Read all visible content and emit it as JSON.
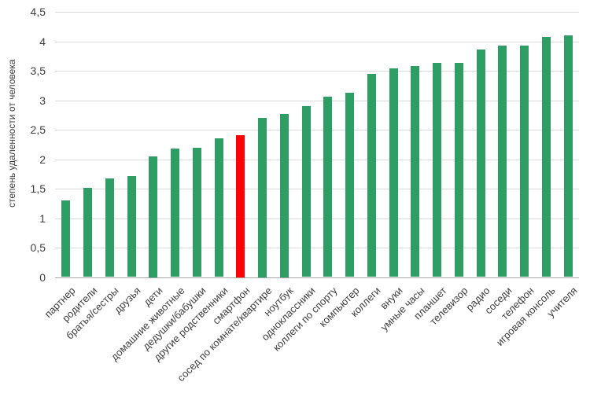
{
  "chart_data": {
    "type": "bar",
    "title": "",
    "xlabel": "",
    "ylabel": "степень удаленности от человека",
    "ylim": [
      0,
      4.5
    ],
    "ytick_step": 0.5,
    "ytick_labels": [
      "0",
      "0,5",
      "1",
      "1,5",
      "2",
      "2,5",
      "3",
      "3,5",
      "4",
      "4,5"
    ],
    "grid": "horizontal",
    "legend_position": "none",
    "highlight_index": 8,
    "highlight_category": "смартфон",
    "colors": {
      "bar": "#2f9e64",
      "highlight": "#ff0000",
      "gridline": "#d9d9d9",
      "axis_line": "#a6a6a6",
      "text": "#3d3d3d",
      "background": "#ffffff"
    },
    "categories": [
      "партнер",
      "родители",
      "братья/сестры",
      "друзья",
      "дети",
      "домашние животные",
      "дедушки/бабушки",
      "другие родственники",
      "смартфон",
      "сосед по комнате/квартире",
      "ноутбук",
      "одноклассники",
      "коллеги по спорту",
      "компьютер",
      "коллеги",
      "внуки",
      "умные часы",
      "планшет",
      "телевизор",
      "радио",
      "соседи",
      "телефон",
      "игровая консоль",
      "учителя"
    ],
    "values": [
      1.3,
      1.52,
      1.68,
      1.71,
      2.05,
      2.18,
      2.2,
      2.36,
      2.41,
      2.71,
      2.77,
      2.9,
      3.06,
      3.13,
      3.45,
      3.54,
      3.59,
      3.64,
      3.64,
      3.87,
      3.93,
      3.93,
      4.08,
      4.11
    ]
  }
}
